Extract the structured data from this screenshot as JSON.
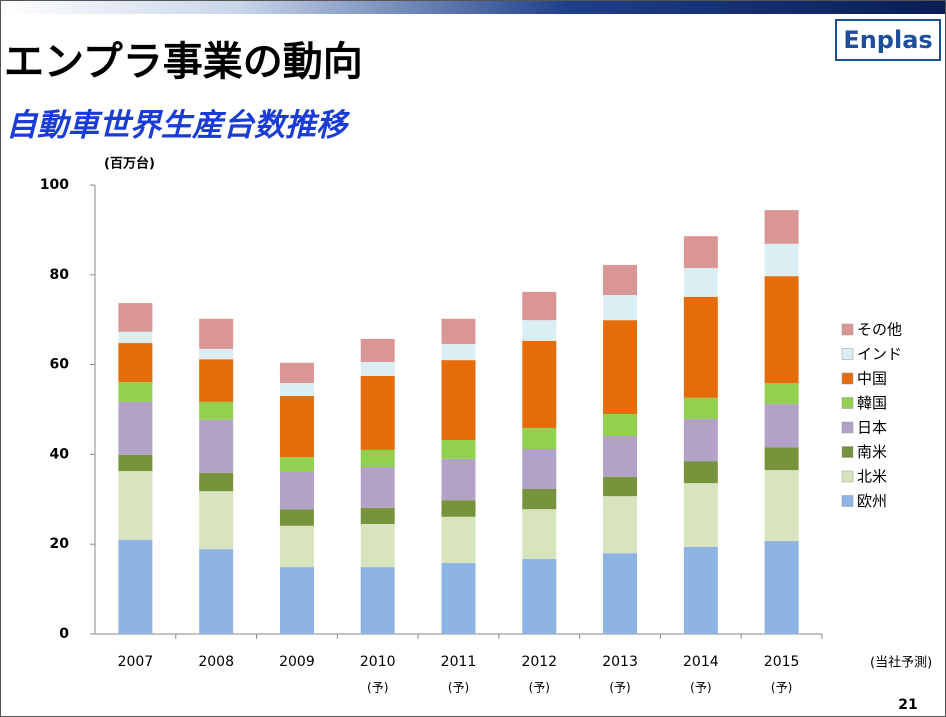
{
  "header": {
    "title": "エンプラ事業の動向",
    "logo": "Enplas",
    "subtitle": "自動車世界生産台数推移"
  },
  "page_number": "21",
  "chart_data": {
    "type": "stacked_bar",
    "y_label": "(百万台)",
    "annotation": "(当社予測)",
    "categories": [
      "2007",
      "2008",
      "2009",
      "2010",
      "2011",
      "2012",
      "2013",
      "2014",
      "2015"
    ],
    "category_notes": [
      null,
      null,
      null,
      "(予)",
      "(予)",
      "(予)",
      "(予)",
      "(予)",
      "(予)"
    ],
    "series": [
      {
        "name": "欧州",
        "color": "#8eb4e3",
        "values": [
          21.0,
          18.9,
          14.9,
          14.9,
          15.8,
          16.7,
          18.0,
          19.4,
          20.7
        ]
      },
      {
        "name": "北米",
        "color": "#d7e4bd",
        "values": [
          15.3,
          12.9,
          9.2,
          9.6,
          10.3,
          11.1,
          12.7,
          14.2,
          15.8
        ]
      },
      {
        "name": "南米",
        "color": "#77933c",
        "values": [
          3.6,
          4.1,
          3.7,
          3.6,
          3.7,
          4.5,
          4.3,
          4.9,
          5.1
        ]
      },
      {
        "name": "日本",
        "color": "#b3a2c7",
        "values": [
          11.8,
          11.8,
          8.3,
          9.1,
          9.2,
          8.9,
          9.1,
          9.4,
          9.6
        ]
      },
      {
        "name": "韓国",
        "color": "#92d050",
        "values": [
          4.4,
          4.0,
          3.3,
          3.8,
          4.2,
          4.7,
          4.9,
          4.7,
          4.7
        ]
      },
      {
        "name": "中国",
        "color": "#e46c0a",
        "values": [
          8.7,
          9.5,
          13.6,
          16.5,
          17.8,
          19.4,
          20.9,
          22.5,
          23.8
        ]
      },
      {
        "name": "インド",
        "color": "#dbeef4",
        "values": [
          2.5,
          2.3,
          2.9,
          3.1,
          3.6,
          4.6,
          5.6,
          6.4,
          7.2
        ]
      },
      {
        "name": "その他",
        "color": "#d99694",
        "values": [
          6.4,
          6.7,
          4.5,
          5.1,
          5.6,
          6.3,
          6.7,
          7.1,
          7.5
        ]
      }
    ],
    "ylim": [
      0,
      100
    ],
    "yticks": [
      0,
      20,
      40,
      60,
      80,
      100
    ],
    "grid": false,
    "legend": "right"
  }
}
